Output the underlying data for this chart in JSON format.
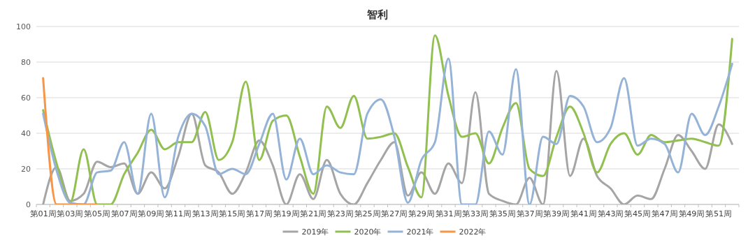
{
  "chart_data": {
    "type": "line",
    "title": "智利",
    "categories": [
      "第01周",
      null,
      "第03周",
      null,
      "第05周",
      null,
      "第07周",
      null,
      "第09周",
      null,
      "第11周",
      null,
      "第13周",
      null,
      "第15周",
      null,
      "第17周",
      null,
      "第19周",
      null,
      "第21周",
      null,
      "第23周",
      null,
      "第25周",
      null,
      "第27周",
      null,
      "第29周",
      null,
      "第31周",
      null,
      "第33周",
      null,
      "第35周",
      null,
      "第37周",
      null,
      "第39周",
      null,
      "第41周",
      null,
      "第43周",
      null,
      "第45周",
      null,
      "第47周",
      null,
      "第49周",
      null,
      "第51周",
      null
    ],
    "series": [
      {
        "name": "2019年",
        "color": "#a5a5a5",
        "values": [
          0,
          21,
          2,
          6,
          24,
          21,
          23,
          6,
          18,
          9,
          27,
          51,
          22,
          18,
          6,
          18,
          36,
          22,
          0,
          17,
          3,
          25,
          6,
          0,
          12,
          25,
          35,
          5,
          18,
          6,
          23,
          12,
          63,
          6,
          2,
          0,
          15,
          0,
          75,
          16,
          37,
          16,
          9,
          0,
          5,
          3,
          20,
          39,
          30,
          20,
          45,
          34
        ]
      },
      {
        "name": "2020年",
        "color": "#92c050",
        "values": [
          53,
          23,
          1,
          31,
          0,
          0,
          17,
          29,
          42,
          31,
          35,
          35,
          52,
          25,
          35,
          69,
          25,
          47,
          50,
          27,
          6,
          55,
          43,
          61,
          37,
          38,
          40,
          21,
          4,
          95,
          61,
          38,
          40,
          23,
          43,
          57,
          20,
          16,
          38,
          55,
          40,
          18,
          34,
          40,
          28,
          39,
          35,
          36,
          37,
          35,
          33,
          93
        ]
      },
      {
        "name": "2021年",
        "color": "#95b3d7",
        "values": [
          51,
          19,
          1,
          0,
          18,
          19,
          35,
          6,
          51,
          4,
          38,
          51,
          44,
          17,
          20,
          17,
          34,
          51,
          14,
          37,
          17,
          22,
          18,
          17,
          51,
          59,
          38,
          1,
          25,
          35,
          82,
          0,
          0,
          41,
          28,
          76,
          0,
          38,
          34,
          61,
          55,
          35,
          43,
          71,
          33,
          37,
          34,
          18,
          51,
          39,
          55,
          79
        ]
      },
      {
        "name": "2022年",
        "color": "#f79646",
        "values": [
          71,
          0,
          0,
          0,
          0,
          null,
          null,
          null,
          null,
          null,
          null,
          null,
          null,
          null,
          null,
          null,
          null,
          null,
          null,
          null,
          null,
          null,
          null,
          null,
          null,
          null,
          null,
          null,
          null,
          null,
          null,
          null,
          null,
          null,
          null,
          null,
          null,
          null,
          null,
          null,
          null,
          null,
          null,
          null,
          null,
          null,
          null,
          null,
          null,
          null,
          null,
          null
        ]
      }
    ],
    "ylim": [
      0,
      100
    ],
    "yticks": [
      0,
      20,
      40,
      60,
      80,
      100
    ],
    "grid": "y",
    "legend": "bottom",
    "marker": "none",
    "line_style": "solid"
  }
}
